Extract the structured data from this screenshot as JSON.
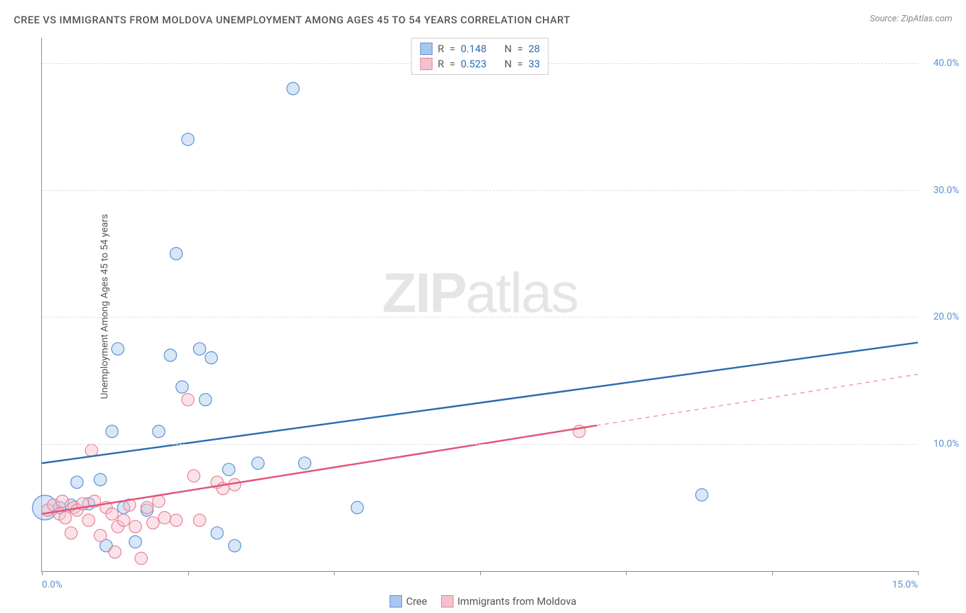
{
  "title": "CREE VS IMMIGRANTS FROM MOLDOVA UNEMPLOYMENT AMONG AGES 45 TO 54 YEARS CORRELATION CHART",
  "source_label": "Source: ZipAtlas.com",
  "y_axis_title": "Unemployment Among Ages 45 to 54 years",
  "watermark_bold": "ZIP",
  "watermark_light": "atlas",
  "chart": {
    "type": "scatter",
    "xlim": [
      0,
      15
    ],
    "ylim": [
      0,
      42
    ],
    "x_ticks": [
      0,
      2.5,
      5,
      7.5,
      10,
      12.5,
      15
    ],
    "x_tick_labels_shown": {
      "0": "0.0%",
      "15": "15.0%"
    },
    "y_ticks": [
      10,
      20,
      30,
      40
    ],
    "y_tick_labels": [
      "10.0%",
      "20.0%",
      "30.0%",
      "40.0%"
    ],
    "grid_color": "#dddddd",
    "axis_color": "#888888",
    "background_color": "#ffffff",
    "tick_label_color": "#5b8fd6",
    "tick_label_fontsize": 14,
    "title_fontsize": 15,
    "title_color": "#555555",
    "marker_radius": 9,
    "marker_opacity": 0.45,
    "marker_stroke_width": 1.2,
    "trendline_width": 2.5
  },
  "series": [
    {
      "name": "Cree",
      "color_fill": "#a9c7ec",
      "color_stroke": "#5b8fd6",
      "trend_color": "#2b6cb0",
      "r_label": "R",
      "r_value": "0.148",
      "n_label": "N",
      "n_value": "28",
      "trendline": {
        "x1": 0,
        "y1": 8.5,
        "x2": 15,
        "y2": 18.0
      },
      "trend_dash_from_x": null,
      "points": [
        {
          "x": 0.05,
          "y": 5.0,
          "r": 18
        },
        {
          "x": 0.3,
          "y": 5.0
        },
        {
          "x": 0.5,
          "y": 5.2
        },
        {
          "x": 0.6,
          "y": 7.0
        },
        {
          "x": 0.8,
          "y": 5.3
        },
        {
          "x": 1.0,
          "y": 7.2
        },
        {
          "x": 1.1,
          "y": 2.0
        },
        {
          "x": 1.2,
          "y": 11.0
        },
        {
          "x": 1.3,
          "y": 17.5
        },
        {
          "x": 1.4,
          "y": 5.0
        },
        {
          "x": 1.6,
          "y": 2.3
        },
        {
          "x": 1.8,
          "y": 4.8
        },
        {
          "x": 2.0,
          "y": 11.0
        },
        {
          "x": 2.2,
          "y": 17.0
        },
        {
          "x": 2.3,
          "y": 25.0
        },
        {
          "x": 2.4,
          "y": 14.5
        },
        {
          "x": 2.5,
          "y": 34.0
        },
        {
          "x": 2.7,
          "y": 17.5
        },
        {
          "x": 2.8,
          "y": 13.5
        },
        {
          "x": 2.9,
          "y": 16.8
        },
        {
          "x": 3.0,
          "y": 3.0
        },
        {
          "x": 3.2,
          "y": 8.0
        },
        {
          "x": 3.3,
          "y": 2.0
        },
        {
          "x": 3.7,
          "y": 8.5
        },
        {
          "x": 4.3,
          "y": 38.0
        },
        {
          "x": 4.5,
          "y": 8.5
        },
        {
          "x": 5.4,
          "y": 5.0
        },
        {
          "x": 11.3,
          "y": 6.0
        }
      ]
    },
    {
      "name": "Immigrants from Moldova",
      "color_fill": "#f4c2cd",
      "color_stroke": "#e87f9a",
      "trend_color": "#e15577",
      "r_label": "R",
      "r_value": "0.523",
      "n_label": "N",
      "n_value": "33",
      "trendline": {
        "x1": 0,
        "y1": 4.5,
        "x2": 15,
        "y2": 15.5
      },
      "trend_dash_from_x": 9.5,
      "points": [
        {
          "x": 0.1,
          "y": 4.8
        },
        {
          "x": 0.2,
          "y": 5.2
        },
        {
          "x": 0.3,
          "y": 4.5
        },
        {
          "x": 0.35,
          "y": 5.5
        },
        {
          "x": 0.4,
          "y": 4.2
        },
        {
          "x": 0.5,
          "y": 3.0
        },
        {
          "x": 0.55,
          "y": 5.0
        },
        {
          "x": 0.6,
          "y": 4.8
        },
        {
          "x": 0.7,
          "y": 5.3
        },
        {
          "x": 0.8,
          "y": 4.0
        },
        {
          "x": 0.85,
          "y": 9.5
        },
        {
          "x": 0.9,
          "y": 5.5
        },
        {
          "x": 1.0,
          "y": 2.8
        },
        {
          "x": 1.1,
          "y": 5.0
        },
        {
          "x": 1.2,
          "y": 4.5
        },
        {
          "x": 1.25,
          "y": 1.5
        },
        {
          "x": 1.3,
          "y": 3.5
        },
        {
          "x": 1.4,
          "y": 4.0
        },
        {
          "x": 1.5,
          "y": 5.2
        },
        {
          "x": 1.6,
          "y": 3.5
        },
        {
          "x": 1.7,
          "y": 1.0
        },
        {
          "x": 1.8,
          "y": 5.0
        },
        {
          "x": 1.9,
          "y": 3.8
        },
        {
          "x": 2.0,
          "y": 5.5
        },
        {
          "x": 2.1,
          "y": 4.2
        },
        {
          "x": 2.3,
          "y": 4.0
        },
        {
          "x": 2.5,
          "y": 13.5
        },
        {
          "x": 2.6,
          "y": 7.5
        },
        {
          "x": 2.7,
          "y": 4.0
        },
        {
          "x": 3.0,
          "y": 7.0
        },
        {
          "x": 3.1,
          "y": 6.5
        },
        {
          "x": 3.3,
          "y": 6.8
        },
        {
          "x": 9.2,
          "y": 11.0
        }
      ]
    }
  ],
  "legend_bottom": {
    "items": [
      {
        "label": "Cree",
        "fill": "#a9c7ec",
        "stroke": "#5b8fd6"
      },
      {
        "label": "Immigrants from Moldova",
        "fill": "#f4c2cd",
        "stroke": "#e87f9a"
      }
    ]
  }
}
